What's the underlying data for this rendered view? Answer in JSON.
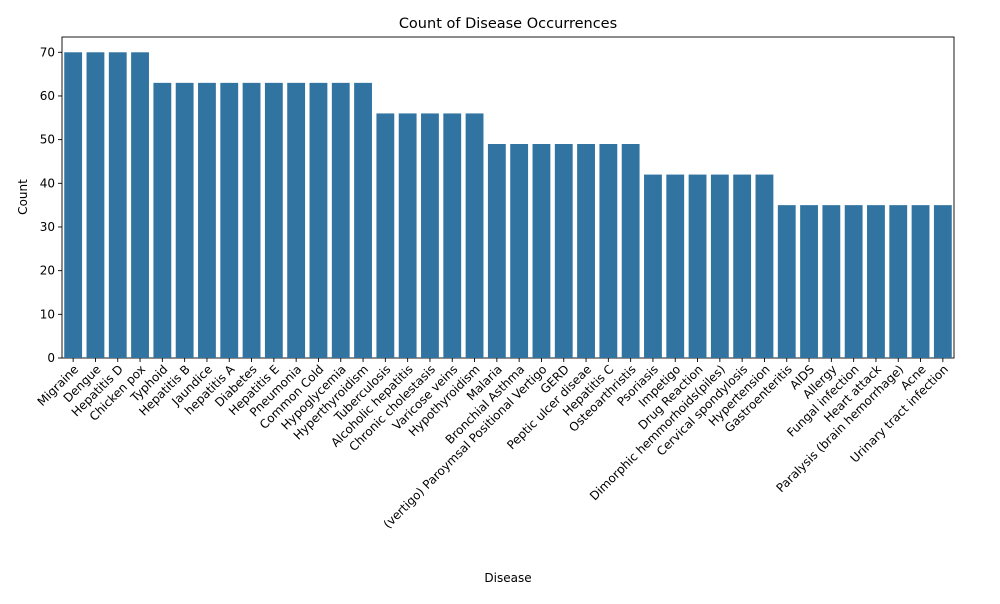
{
  "chart_data": {
    "type": "bar",
    "title": "Count of Disease Occurrences",
    "xlabel": "Disease",
    "ylabel": "Count",
    "ylim": [
      0,
      73.5
    ],
    "yticks": [
      0,
      10,
      20,
      30,
      40,
      50,
      60,
      70
    ],
    "grid": false,
    "bar_color": "#3274a1",
    "categories": [
      "Migraine",
      "Dengue",
      "Hepatitis D",
      "Chicken pox",
      "Typhoid",
      "Hepatitis B",
      "Jaundice",
      "hepatitis A",
      "Diabetes",
      "Hepatitis E",
      "Pneumonia",
      "Common Cold",
      "Hypoglycemia",
      "Hyperthyroidism",
      "Tuberculosis",
      "Alcoholic hepatitis",
      "Chronic cholestasis",
      "Varicose veins",
      "Hypothyroidism",
      "Malaria",
      "Bronchial Asthma",
      "(vertigo) Paroymsal  Positional Vertigo",
      "GERD",
      "Peptic ulcer diseae",
      "Hepatitis C",
      "Osteoarthristis",
      "Psoriasis",
      "Impetigo",
      "Drug Reaction",
      "Dimorphic hemmorhoids(piles)",
      "Cervical spondylosis",
      "Hypertension",
      "Gastroenteritis",
      "AIDS",
      "Allergy",
      "Fungal infection",
      "Heart attack",
      "Paralysis (brain hemorrhage)",
      "Acne",
      "Urinary tract infection"
    ],
    "values": [
      70,
      70,
      70,
      70,
      63,
      63,
      63,
      63,
      63,
      63,
      63,
      63,
      63,
      63,
      56,
      56,
      56,
      56,
      56,
      49,
      49,
      49,
      49,
      49,
      49,
      49,
      42,
      42,
      42,
      42,
      42,
      42,
      35,
      35,
      35,
      35,
      35,
      35,
      35,
      35
    ]
  }
}
